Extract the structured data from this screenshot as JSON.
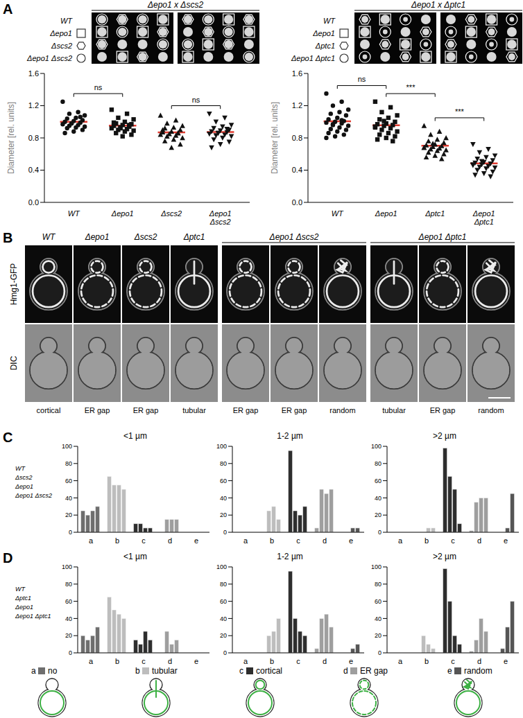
{
  "panel_labels": [
    "A",
    "B",
    "C",
    "D"
  ],
  "tetrads": [
    {
      "title": "Δepo1 x Δscs2",
      "genotypes": [
        {
          "name": "WT",
          "marker": "none"
        },
        {
          "name": "Δepo1",
          "marker": "square"
        },
        {
          "name": "Δscs2",
          "marker": "hexagon"
        },
        {
          "name": "Δepo1 Δscs2",
          "marker": "circle"
        }
      ],
      "spots": [
        [
          3,
          2,
          3,
          1,
          2,
          3,
          1,
          2
        ],
        [
          1,
          3,
          1,
          2,
          0,
          2,
          3,
          1
        ],
        [
          2,
          0,
          0,
          3,
          3,
          1,
          2,
          0
        ],
        [
          0,
          1,
          2,
          0,
          1,
          0,
          0,
          3
        ]
      ]
    },
    {
      "title": "Δepo1 x Δptc1",
      "genotypes": [
        {
          "name": "WT",
          "marker": "none"
        },
        {
          "name": "Δepo1",
          "marker": "square"
        },
        {
          "name": "Δptc1",
          "marker": "hexagon"
        },
        {
          "name": "Δepo1 Δptc1",
          "marker": "circle"
        }
      ],
      "spots": [
        [
          2,
          1,
          3,
          0,
          0,
          2,
          1,
          3
        ],
        [
          1,
          3,
          0,
          2,
          3,
          1,
          2,
          0
        ],
        [
          0,
          2,
          1,
          3,
          2,
          0,
          3,
          1
        ],
        [
          3,
          0,
          2,
          1,
          1,
          3,
          0,
          2
        ]
      ]
    }
  ],
  "chart_data": [
    {
      "type": "scatter",
      "y_label": "Diameter [rel. units]",
      "ylim": [
        0,
        1.6
      ],
      "yticks": [
        {
          "value": 0,
          "label": "0.0"
        },
        0.4,
        0.8,
        1.2,
        1.6
      ],
      "series": [
        {
          "name": "WT",
          "marker": "circle",
          "color": "#111111",
          "values": [
            1.25,
            1.12,
            1.1,
            1.08,
            1.05,
            1.04,
            1.02,
            1.01,
            1.0,
            0.99,
            0.98,
            0.97,
            0.96,
            0.95,
            0.94,
            0.93,
            0.92,
            0.9,
            0.88,
            0.86,
            1.06,
            0.98
          ]
        },
        {
          "name": "Δepo1",
          "marker": "square",
          "color": "#111111",
          "values": [
            1.15,
            1.1,
            1.05,
            1.03,
            1.0,
            0.98,
            0.97,
            0.96,
            0.95,
            0.94,
            0.93,
            0.92,
            0.91,
            0.9,
            0.89,
            0.88,
            0.86,
            0.84,
            0.82,
            0.99,
            0.96,
            0.92
          ]
        },
        {
          "name": "Δscs2",
          "marker": "triangle-up",
          "color": "#111111",
          "values": [
            1.08,
            1.02,
            0.98,
            0.95,
            0.93,
            0.92,
            0.9,
            0.88,
            0.87,
            0.86,
            0.85,
            0.84,
            0.83,
            0.82,
            0.8,
            0.78,
            0.76,
            0.72,
            0.68,
            0.9,
            0.86
          ]
        },
        {
          "name": "Δepo1 Δscs2",
          "marker": "triangle-down",
          "color": "#111111",
          "values": [
            1.1,
            1.05,
            1.0,
            0.96,
            0.94,
            0.92,
            0.9,
            0.89,
            0.88,
            0.87,
            0.86,
            0.85,
            0.84,
            0.83,
            0.82,
            0.8,
            0.78,
            0.75,
            0.72,
            0.68,
            0.91,
            0.86
          ]
        }
      ],
      "annotations": [
        {
          "from": "WT",
          "to": "Δepo1",
          "text": "ns"
        },
        {
          "from": "Δscs2",
          "to": "Δepo1 Δscs2",
          "text": "ns"
        }
      ]
    },
    {
      "type": "scatter",
      "y_label": "Diameter [rel. units]",
      "ylim": [
        0,
        1.6
      ],
      "yticks": [
        {
          "value": 0,
          "label": "0.0"
        },
        0.4,
        0.8,
        1.2,
        1.6
      ],
      "series": [
        {
          "name": "WT",
          "marker": "circle",
          "color": "#111111",
          "values": [
            1.35,
            1.25,
            1.2,
            1.15,
            1.12,
            1.1,
            1.08,
            1.05,
            1.03,
            1.01,
            1.0,
            0.99,
            0.98,
            0.96,
            0.95,
            0.93,
            0.91,
            0.9,
            0.88,
            0.86,
            0.84,
            0.82,
            0.8,
            1.02,
            0.97
          ]
        },
        {
          "name": "Δepo1",
          "marker": "square",
          "color": "#111111",
          "values": [
            1.25,
            1.18,
            1.12,
            1.08,
            1.05,
            1.03,
            1.0,
            0.98,
            0.97,
            0.96,
            0.95,
            0.94,
            0.92,
            0.9,
            0.88,
            0.86,
            0.84,
            0.82,
            0.8,
            0.78,
            0.76,
            1.01,
            0.93
          ]
        },
        {
          "name": "Δptc1",
          "marker": "triangle-up",
          "color": "#111111",
          "values": [
            0.95,
            0.88,
            0.84,
            0.8,
            0.78,
            0.76,
            0.74,
            0.72,
            0.71,
            0.7,
            0.69,
            0.68,
            0.67,
            0.66,
            0.65,
            0.64,
            0.62,
            0.6,
            0.58,
            0.56,
            0.54,
            0.73,
            0.68
          ]
        },
        {
          "name": "Δepo1 Δptc1",
          "marker": "triangle-down",
          "color": "#111111",
          "values": [
            0.72,
            0.66,
            0.62,
            0.58,
            0.56,
            0.54,
            0.52,
            0.5,
            0.49,
            0.48,
            0.47,
            0.46,
            0.45,
            0.44,
            0.43,
            0.42,
            0.4,
            0.38,
            0.36,
            0.34,
            0.32,
            0.51,
            0.47
          ]
        }
      ],
      "annotations": [
        {
          "from": "WT",
          "to": "Δepo1",
          "text": "ns"
        },
        {
          "from": "Δepo1",
          "to": "Δptc1",
          "text": "***"
        },
        {
          "from": "Δptc1",
          "to": "Δepo1 Δptc1",
          "text": "***"
        }
      ]
    },
    {
      "type": "bar",
      "title": "<1 µm",
      "categories": [
        "a",
        "b",
        "c",
        "d",
        "e"
      ],
      "colors": [
        "#6e6e6e",
        "#bdbdbd",
        "#2e2e2e",
        "#9e9e9e",
        "#555555"
      ],
      "ylim": [
        0,
        100
      ],
      "yticks": [
        0,
        20,
        40,
        60,
        80,
        100
      ],
      "series": [
        {
          "name": "WT",
          "values": [
            25,
            65,
            10,
            0,
            0
          ]
        },
        {
          "name": "Δscs2",
          "values": [
            20,
            55,
            10,
            15,
            0
          ]
        },
        {
          "name": "Δepo1",
          "values": [
            25,
            55,
            5,
            15,
            0
          ]
        },
        {
          "name": "Δepo1 Δscs2",
          "values": [
            30,
            50,
            5,
            15,
            0
          ]
        }
      ]
    },
    {
      "type": "bar",
      "title": "1-2 µm",
      "categories": [
        "a",
        "b",
        "c",
        "d",
        "e"
      ],
      "colors": [
        "#6e6e6e",
        "#bdbdbd",
        "#2e2e2e",
        "#9e9e9e",
        "#555555"
      ],
      "ylim": [
        0,
        100
      ],
      "yticks": [
        0,
        20,
        40,
        60,
        80,
        100
      ],
      "series": [
        {
          "name": "WT",
          "values": [
            0,
            0,
            95,
            5,
            0
          ]
        },
        {
          "name": "Δscs2",
          "values": [
            0,
            25,
            25,
            50,
            0
          ]
        },
        {
          "name": "Δepo1",
          "values": [
            0,
            30,
            20,
            45,
            5
          ]
        },
        {
          "name": "Δepo1 Δscs2",
          "values": [
            0,
            15,
            30,
            50,
            5
          ]
        }
      ]
    },
    {
      "type": "bar",
      "title": ">2 µm",
      "categories": [
        "a",
        "b",
        "c",
        "d",
        "e"
      ],
      "colors": [
        "#6e6e6e",
        "#bdbdbd",
        "#2e2e2e",
        "#9e9e9e",
        "#555555"
      ],
      "ylim": [
        0,
        100
      ],
      "yticks": [
        0,
        20,
        40,
        60,
        80,
        100
      ],
      "series": [
        {
          "name": "WT",
          "values": [
            0,
            0,
            98,
            2,
            0
          ]
        },
        {
          "name": "Δscs2",
          "values": [
            0,
            0,
            65,
            35,
            0
          ]
        },
        {
          "name": "Δepo1",
          "values": [
            0,
            5,
            50,
            40,
            5
          ]
        },
        {
          "name": "Δepo1 Δscs2",
          "values": [
            0,
            5,
            10,
            40,
            45
          ]
        }
      ]
    },
    {
      "type": "bar",
      "title": "<1 µm",
      "categories": [
        "a",
        "b",
        "c",
        "d",
        "e"
      ],
      "colors": [
        "#6e6e6e",
        "#bdbdbd",
        "#2e2e2e",
        "#9e9e9e",
        "#555555"
      ],
      "ylim": [
        0,
        100
      ],
      "yticks": [
        0,
        20,
        40,
        60,
        80,
        100
      ],
      "series": [
        {
          "name": "WT",
          "values": [
            20,
            65,
            15,
            0,
            0
          ]
        },
        {
          "name": "Δptc1",
          "values": [
            15,
            50,
            10,
            25,
            0
          ]
        },
        {
          "name": "Δepo1",
          "values": [
            20,
            45,
            25,
            10,
            0
          ]
        },
        {
          "name": "Δepo1 Δptc1",
          "values": [
            30,
            40,
            15,
            15,
            0
          ]
        }
      ]
    },
    {
      "type": "bar",
      "title": "1-2 µm",
      "categories": [
        "a",
        "b",
        "c",
        "d",
        "e"
      ],
      "colors": [
        "#6e6e6e",
        "#bdbdbd",
        "#2e2e2e",
        "#9e9e9e",
        "#555555"
      ],
      "ylim": [
        0,
        100
      ],
      "yticks": [
        0,
        20,
        40,
        60,
        80,
        100
      ],
      "series": [
        {
          "name": "WT",
          "values": [
            0,
            0,
            95,
            5,
            0
          ]
        },
        {
          "name": "Δptc1",
          "values": [
            0,
            20,
            40,
            40,
            0
          ]
        },
        {
          "name": "Δepo1",
          "values": [
            0,
            25,
            25,
            45,
            5
          ]
        },
        {
          "name": "Δepo1 Δptc1",
          "values": [
            0,
            40,
            20,
            30,
            10
          ]
        }
      ]
    },
    {
      "type": "bar",
      "title": ">2 µm",
      "categories": [
        "a",
        "b",
        "c",
        "d",
        "e"
      ],
      "colors": [
        "#6e6e6e",
        "#bdbdbd",
        "#2e2e2e",
        "#9e9e9e",
        "#555555"
      ],
      "ylim": [
        0,
        100
      ],
      "yticks": [
        0,
        20,
        40,
        60,
        80,
        100
      ],
      "series": [
        {
          "name": "WT",
          "values": [
            0,
            0,
            98,
            2,
            0
          ]
        },
        {
          "name": "Δptc1",
          "values": [
            0,
            20,
            60,
            15,
            5
          ]
        },
        {
          "name": "Δepo1",
          "values": [
            0,
            10,
            20,
            40,
            30
          ]
        },
        {
          "name": "Δepo1 Δptc1",
          "values": [
            0,
            5,
            10,
            25,
            60
          ]
        }
      ]
    }
  ],
  "microscopy": {
    "channels": [
      "Hmg1-GFP",
      "DIC"
    ],
    "groups": [
      {
        "label": "WT",
        "cells": [
          "cortical"
        ]
      },
      {
        "label": "Δepo1",
        "cells": [
          "ER gap"
        ]
      },
      {
        "label": "Δscs2",
        "cells": [
          "ER gap"
        ]
      },
      {
        "label": "Δptc1",
        "cells": [
          "tubular"
        ]
      },
      {
        "label": "Δepo1 Δscs2",
        "cells": [
          "ER gap",
          "ER gap",
          "random"
        ]
      },
      {
        "label": "Δepo1 Δptc1",
        "cells": [
          "tubular",
          "ER gap",
          "random"
        ]
      }
    ]
  },
  "phenotypes": [
    {
      "key": "a",
      "name": "no"
    },
    {
      "key": "b",
      "name": "tubular"
    },
    {
      "key": "c",
      "name": "cortical"
    },
    {
      "key": "d",
      "name": "ER gap"
    },
    {
      "key": "e",
      "name": "random"
    }
  ]
}
